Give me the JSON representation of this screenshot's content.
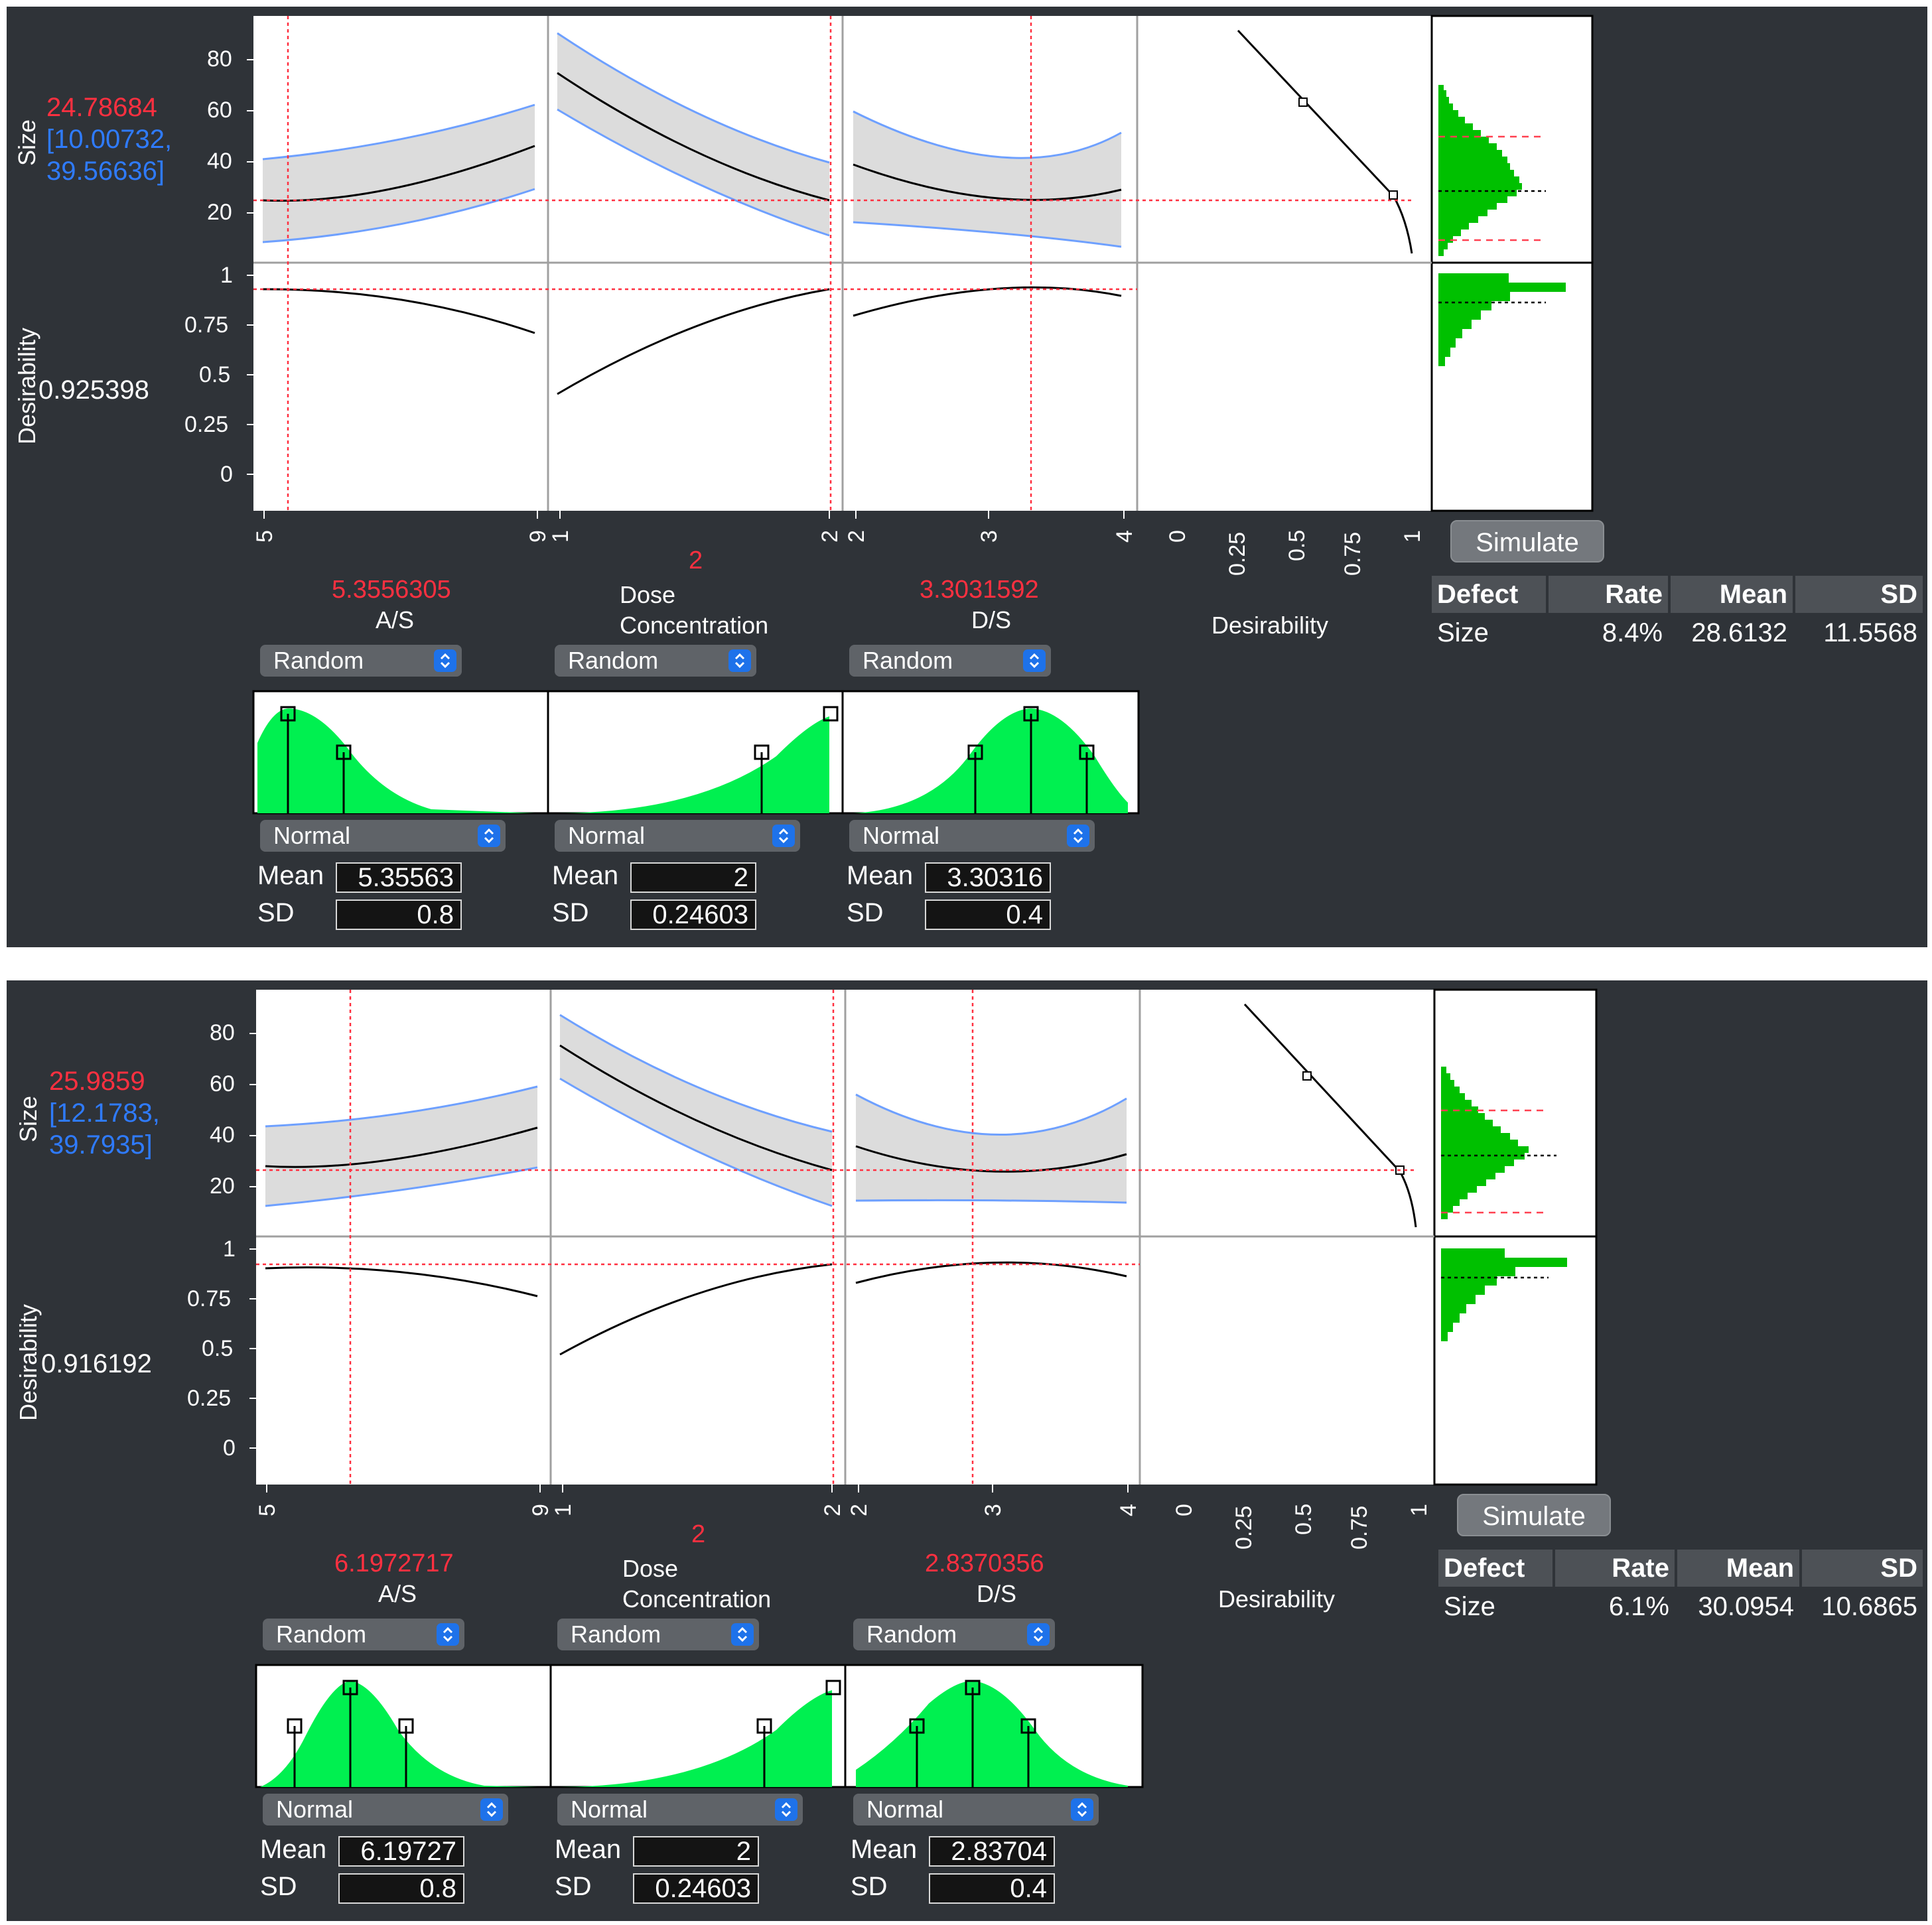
{
  "panels": [
    {
      "size_value": "24.78684",
      "size_ci_lo": "[10.00732,",
      "size_ci_hi": "39.56636]",
      "desirability_value": "0.925398",
      "size_label": "Size",
      "desirability_label": "Desirability",
      "size_ticks": [
        "80",
        "60",
        "40",
        "20"
      ],
      "des_ticks": [
        "1",
        "0.75",
        "0.5",
        "0.25",
        "0"
      ],
      "factors": [
        {
          "name_line1": "A/S",
          "name_line2": "",
          "value": "5.3556305",
          "axis_min": "5",
          "axis_max": "9",
          "dist_type": "Random",
          "distribution": "Normal",
          "mean_label": "Mean",
          "sd_label": "SD",
          "mean": "5.35563",
          "sd": "0.8"
        },
        {
          "name_line1": "Dose",
          "name_line2": "Concentration",
          "value": "2",
          "axis_min": "1",
          "axis_max": "2",
          "dist_type": "Random",
          "distribution": "Normal",
          "mean_label": "Mean",
          "sd_label": "SD",
          "mean": "2",
          "sd": "0.24603"
        },
        {
          "name_line1": "D/S",
          "name_line2": "",
          "value": "3.3031592",
          "axis_min": "2",
          "axis_mid": "3",
          "axis_max": "4",
          "dist_type": "Random",
          "distribution": "Normal",
          "mean_label": "Mean",
          "sd_label": "SD",
          "mean": "3.30316",
          "sd": "0.4"
        }
      ],
      "des_axis_ticks": [
        "0",
        "0.25",
        "0.5",
        "0.75",
        "1"
      ],
      "des_axis_label": "Desirability",
      "simulate_label": "Simulate",
      "defect_table": {
        "headers": [
          "Defect",
          "Rate",
          "Mean",
          "SD"
        ],
        "row": [
          "Size",
          "8.4%",
          "28.6132",
          "11.5568"
        ]
      }
    },
    {
      "size_value": "25.9859",
      "size_ci_lo": "[12.1783,",
      "size_ci_hi": "39.7935]",
      "desirability_value": "0.916192",
      "size_label": "Size",
      "desirability_label": "Desirability",
      "size_ticks": [
        "80",
        "60",
        "40",
        "20"
      ],
      "des_ticks": [
        "1",
        "0.75",
        "0.5",
        "0.25",
        "0"
      ],
      "factors": [
        {
          "name_line1": "A/S",
          "name_line2": "",
          "value": "6.1972717",
          "axis_min": "5",
          "axis_max": "9",
          "dist_type": "Random",
          "distribution": "Normal",
          "mean_label": "Mean",
          "sd_label": "SD",
          "mean": "6.19727",
          "sd": "0.8"
        },
        {
          "name_line1": "Dose",
          "name_line2": "Concentration",
          "value": "2",
          "axis_min": "1",
          "axis_max": "2",
          "dist_type": "Random",
          "distribution": "Normal",
          "mean_label": "Mean",
          "sd_label": "SD",
          "mean": "2",
          "sd": "0.24603"
        },
        {
          "name_line1": "D/S",
          "name_line2": "",
          "value": "2.8370356",
          "axis_min": "2",
          "axis_mid": "3",
          "axis_max": "4",
          "dist_type": "Random",
          "distribution": "Normal",
          "mean_label": "Mean",
          "sd_label": "SD",
          "mean": "2.83704",
          "sd": "0.4"
        }
      ],
      "des_axis_ticks": [
        "0",
        "0.25",
        "0.5",
        "0.75",
        "1"
      ],
      "des_axis_label": "Desirability",
      "simulate_label": "Simulate",
      "defect_table": {
        "headers": [
          "Defect",
          "Rate",
          "Mean",
          "SD"
        ],
        "row": [
          "Size",
          "6.1%",
          "30.0954",
          "10.6865"
        ]
      }
    }
  ],
  "colors": {
    "panel_bg": "#2f3338",
    "current_value": "#ff3040",
    "confidence": "#2f7bff",
    "distribution_fill": "#00f050",
    "histogram_fill": "#00c000",
    "band_fill": "#dcdcdc"
  }
}
